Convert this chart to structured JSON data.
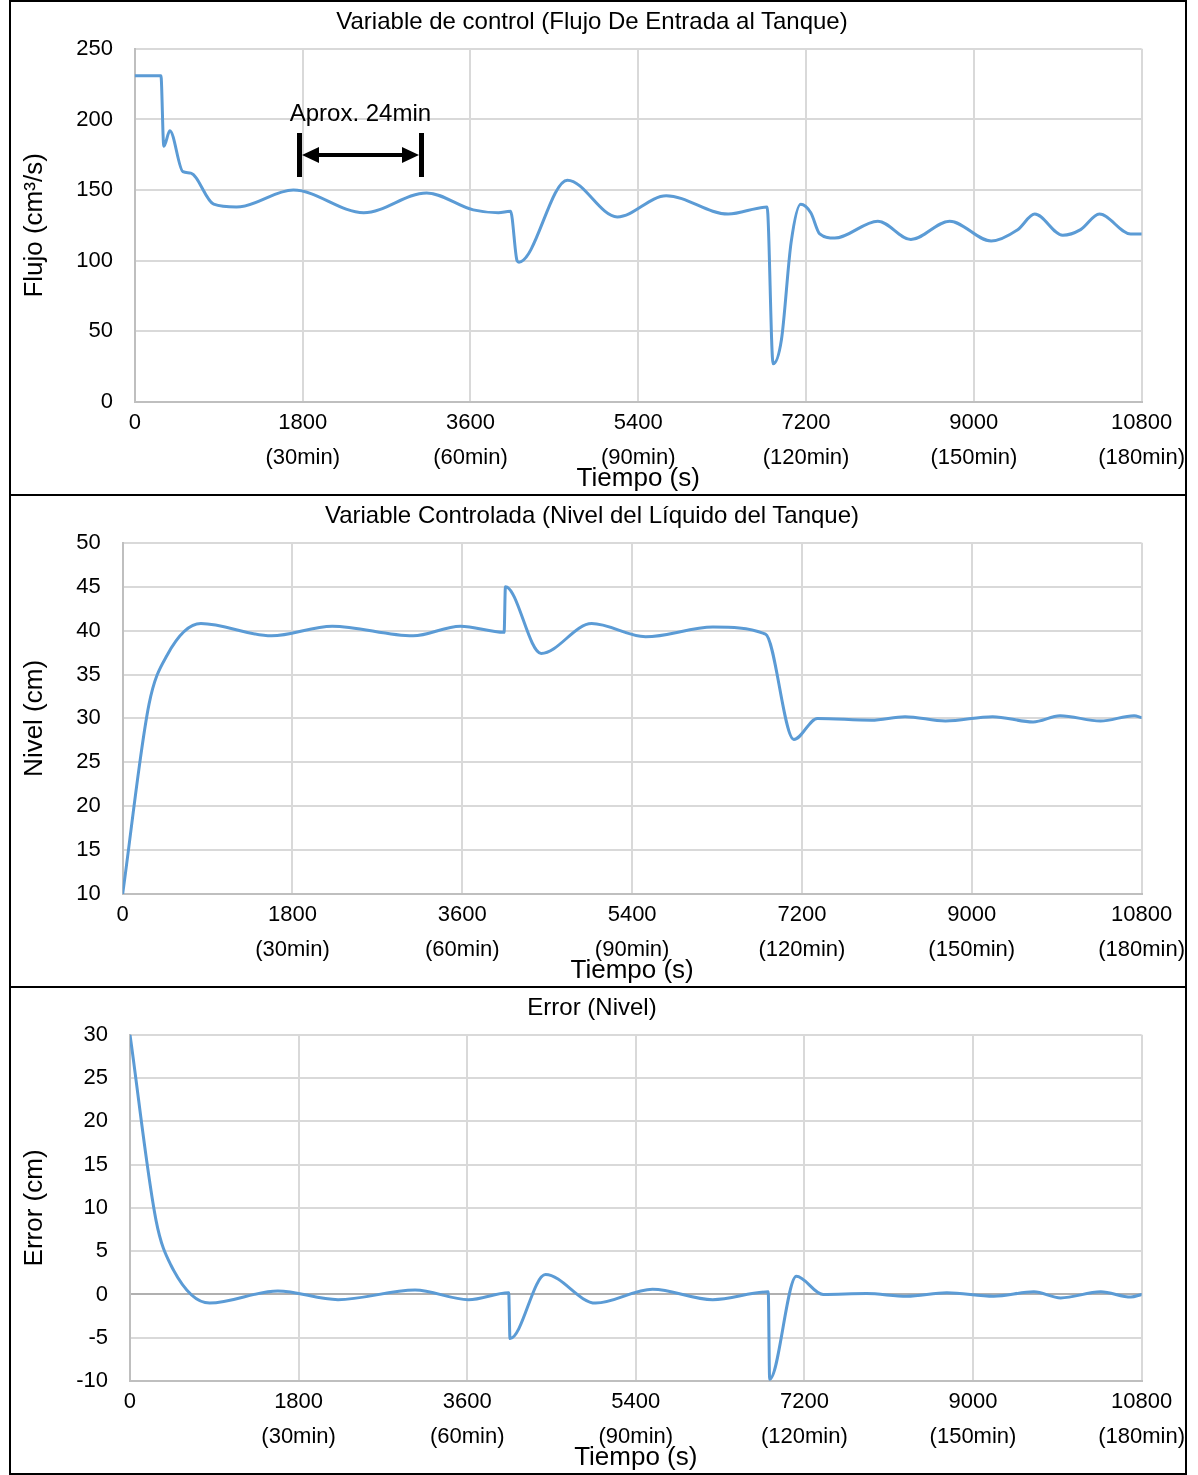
{
  "chart_data": [
    {
      "type": "line",
      "title": "Variable de control (Flujo De Entrada al Tanque)",
      "xlabel": "Tiempo (s)",
      "ylabel": "Flujo (cm³/s)",
      "marker": "none",
      "grid": true,
      "xlim": [
        0,
        10800
      ],
      "ylim": [
        0,
        250
      ],
      "xticks": [
        0,
        1800,
        3600,
        5400,
        7200,
        9000,
        10800
      ],
      "x2lim": [
        0,
        180
      ],
      "x2ticks": [
        {
          "value": 30,
          "label": "(30min)"
        },
        {
          "value": 60,
          "label": "(60min)"
        },
        {
          "value": 90,
          "label": "(90min)"
        },
        {
          "value": 120,
          "label": "(120min)"
        },
        {
          "value": 150,
          "label": "(150min)"
        },
        {
          "value": 180,
          "label": "(180min)"
        }
      ],
      "yticks": [
        0,
        50,
        100,
        150,
        200,
        250
      ],
      "annotations": [
        "Aprox. 24min"
      ],
      "x": [
        0,
        279,
        310,
        375,
        515,
        600,
        845,
        1090,
        1700,
        2455,
        3130,
        3630,
        3900,
        4030,
        4100,
        4120,
        4640,
        5175,
        5700,
        6365,
        6782,
        6847,
        6936,
        7040,
        7143,
        7251,
        7347,
        7508,
        7971,
        8325,
        8740,
        9186,
        9471,
        9654,
        9954,
        10146,
        10347,
        10682,
        10800
      ],
      "series": [
        {
          "color": "#5b9bd5",
          "values": [
            231,
            231,
            181,
            192,
            163,
            162,
            140,
            138,
            150,
            134,
            148,
            136,
            134,
            135,
            100,
            99,
            157,
            131,
            146,
            133,
            138,
            27,
            44,
            113,
            140,
            134,
            119,
            116,
            128,
            115,
            128,
            114,
            122,
            133,
            118,
            122,
            133,
            119,
            119
          ]
        }
      ]
    },
    {
      "type": "line",
      "title": "Variable Controlada (Nivel del Líquido del Tanque)",
      "xlabel": "Tiempo (s)",
      "ylabel": "Nivel (cm)",
      "marker": "none",
      "grid": true,
      "xlim": [
        0,
        10800
      ],
      "ylim": [
        10,
        50
      ],
      "xticks": [
        0,
        1800,
        3600,
        5400,
        7200,
        9000,
        10800
      ],
      "x2lim": [
        0,
        180
      ],
      "x2ticks": [
        {
          "value": 30,
          "label": "(30min)"
        },
        {
          "value": 60,
          "label": "(60min)"
        },
        {
          "value": 90,
          "label": "(90min)"
        },
        {
          "value": 120,
          "label": "(120min)"
        },
        {
          "value": 150,
          "label": "(150min)"
        },
        {
          "value": 180,
          "label": "(180min)"
        }
      ],
      "yticks": [
        10,
        15,
        20,
        25,
        30,
        35,
        40,
        45,
        50
      ],
      "x": [
        0,
        279,
        471,
        829,
        1578,
        2221,
        3078,
        3579,
        4043,
        4057,
        4436,
        4971,
        5543,
        6257,
        6814,
        7114,
        7364,
        7936,
        8293,
        8721,
        9221,
        9650,
        9936,
        10364,
        10721,
        10800
      ],
      "series": [
        {
          "color": "#5b9bd5",
          "values": [
            10,
            31.6,
            37.2,
            40.8,
            39.4,
            40.5,
            39.4,
            40.5,
            39.8,
            45,
            37.4,
            40.8,
            39.3,
            40.4,
            39.6,
            27.6,
            30,
            29.8,
            30.2,
            29.7,
            30.2,
            29.6,
            30.3,
            29.7,
            30.3,
            30.1
          ]
        }
      ]
    },
    {
      "type": "line",
      "title": "Error (Nivel)",
      "xlabel": "Tiempo (s)",
      "ylabel": "Error (cm)",
      "marker": "none",
      "grid": true,
      "xlim": [
        0,
        10800
      ],
      "ylim": [
        -10,
        30
      ],
      "xticks": [
        0,
        1800,
        3600,
        5400,
        7200,
        9000,
        10800
      ],
      "x2lim": [
        0,
        180
      ],
      "x2ticks": [
        {
          "value": 30,
          "label": "(30min)"
        },
        {
          "value": 60,
          "label": "(60min)"
        },
        {
          "value": 90,
          "label": "(90min)"
        },
        {
          "value": 120,
          "label": "(120min)"
        },
        {
          "value": 150,
          "label": "(150min)"
        },
        {
          "value": 180,
          "label": "(180min)"
        }
      ],
      "yticks": [
        -10,
        -5,
        0,
        5,
        10,
        15,
        20,
        25,
        30
      ],
      "x": [
        0,
        279,
        436,
        850,
        1578,
        2221,
        3043,
        3614,
        4043,
        4057,
        4436,
        4971,
        5579,
        6221,
        6814,
        6829,
        7114,
        7400,
        7864,
        8293,
        8721,
        9221,
        9650,
        9936,
        10364,
        10686,
        10800
      ],
      "series": [
        {
          "color": "#5b9bd5",
          "values": [
            30,
            8.5,
            3.4,
            -1,
            0.4,
            -0.6,
            0.5,
            -0.6,
            0.2,
            -5.1,
            2.3,
            -1,
            0.6,
            -0.6,
            0.3,
            -9.8,
            2.1,
            0,
            0.1,
            -0.2,
            0.2,
            -0.2,
            0.3,
            -0.4,
            0.3,
            -0.3,
            0
          ]
        }
      ]
    }
  ]
}
